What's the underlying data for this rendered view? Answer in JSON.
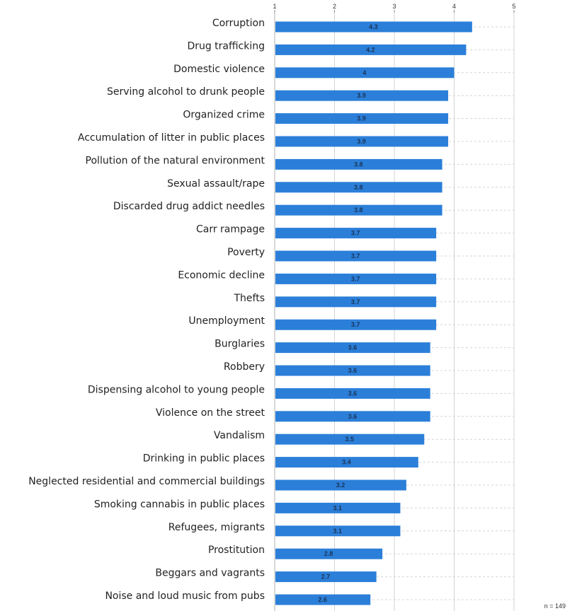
{
  "chart_data": {
    "type": "bar",
    "orientation": "horizontal",
    "categories": [
      "Corruption",
      "Drug trafficking",
      "Domestic violence",
      "Serving alcohol to drunk people",
      "Organized crime",
      "Accumulation of litter in public places",
      "Pollution of the natural environment",
      "Sexual assault/rape",
      "Discarded drug addict needles",
      "Carr rampage",
      "Poverty",
      "Economic decline",
      "Thefts",
      "Unemployment",
      "Burglaries",
      "Robbery",
      "Dispensing alcohol to young people",
      "Violence on the street",
      "Vandalism",
      "Drinking in public places",
      "Neglected residential and commercial buildings",
      "Smoking cannabis in public places",
      "Refugees, migrants",
      "Prostitution",
      "Beggars and vagrants",
      "Noise and loud music from pubs"
    ],
    "values": [
      4.3,
      4.2,
      4,
      3.9,
      3.9,
      3.9,
      3.8,
      3.8,
      3.8,
      3.7,
      3.7,
      3.7,
      3.7,
      3.7,
      3.6,
      3.6,
      3.6,
      3.6,
      3.5,
      3.4,
      3.2,
      3.1,
      3.1,
      2.8,
      2.7,
      2.6
    ],
    "data_labels": [
      "4.3",
      "4.2",
      "4",
      "3.9",
      "3.9",
      "3.9",
      "3.8",
      "3.8",
      "3.8",
      "3.7",
      "3.7",
      "3.7",
      "3.7",
      "3.7",
      "3.6",
      "3.6",
      "3.6",
      "3.6",
      "3.5",
      "3.4",
      "3.2",
      "3.1",
      "3.1",
      "2.8",
      "2.7",
      "2.6"
    ],
    "xlim": [
      1,
      5
    ],
    "xticks": [
      1,
      2,
      3,
      4,
      5
    ],
    "xtick_labels": [
      "1",
      "2",
      "3",
      "4",
      "5"
    ],
    "axis_position": "top",
    "grid": true,
    "legend": false,
    "bar_color": "#2b7fd9",
    "grid_color": "#d4d4d4",
    "title": "",
    "xlabel": "",
    "ylabel": ""
  },
  "footnote": "n = 149"
}
